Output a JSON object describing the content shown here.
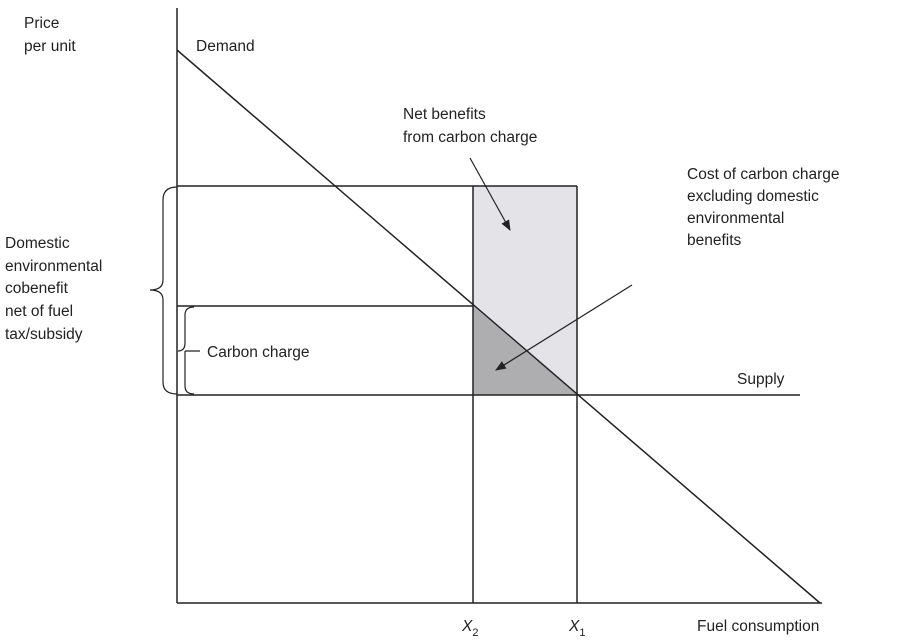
{
  "axes": {
    "y_label": [
      "Price",
      "per unit"
    ],
    "x_label": "Fuel consumption"
  },
  "curves": {
    "demand": "Demand",
    "supply": "Supply"
  },
  "annotations": {
    "net_benefits": [
      "Net benefits",
      "from carbon charge"
    ],
    "cost": [
      "Cost of carbon charge",
      "excluding domestic",
      "environmental",
      "benefits"
    ],
    "cobenefit": [
      "Domestic",
      "environmental",
      "cobenefit",
      "net of fuel",
      "tax/subsidy"
    ],
    "carbon_charge": "Carbon charge"
  },
  "x_points": [
    {
      "main": "X",
      "sub": "2"
    },
    {
      "main": "X",
      "sub": "1"
    }
  ]
}
